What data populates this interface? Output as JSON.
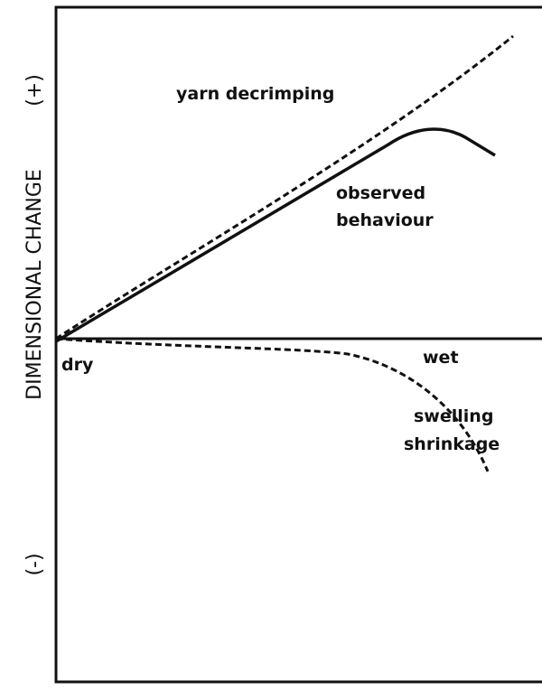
{
  "axis_label": "DIMENSIONAL CHANGE",
  "positive_label": "(+)",
  "negative_label": "(-)",
  "curves": {
    "decrimping": "yarn decrimping",
    "observed": [
      "observed",
      "behaviour"
    ],
    "swelling": [
      "swelling",
      "shrinkage"
    ]
  },
  "states": {
    "start": "dry",
    "end": "wet"
  }
}
